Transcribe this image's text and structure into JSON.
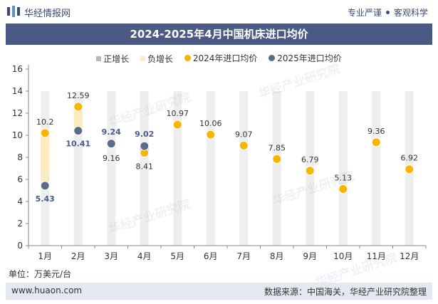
{
  "header": {
    "brand": "华经情报网",
    "slogan_left": "专业严谨",
    "slogan_right": "客观科学"
  },
  "chart_data": {
    "type": "line",
    "title": "2024-2025年4月中国机床进口均价",
    "unit": "单位：万美元/台",
    "categories": [
      "1月",
      "2月",
      "3月",
      "4月",
      "5月",
      "6月",
      "7月",
      "8月",
      "9月",
      "10月",
      "11月",
      "12月"
    ],
    "ylim": [
      0,
      16
    ],
    "yticks": [
      0,
      2,
      4,
      6,
      8,
      10,
      12,
      14,
      16
    ],
    "legend": [
      "正增长",
      "负增长",
      "2024年进口均价",
      "2025年进口均价"
    ],
    "legend_position": "top",
    "series": [
      {
        "name": "2024年进口均价",
        "color": "#f7b500",
        "values": [
          10.2,
          12.59,
          9.16,
          8.41,
          10.97,
          10.06,
          9.07,
          7.85,
          6.79,
          5.13,
          9.36,
          6.92
        ]
      },
      {
        "name": "2025年进口均价",
        "color": "#5b6b8c",
        "values": [
          5.43,
          10.41,
          9.24,
          9.02,
          null,
          null,
          null,
          null,
          null,
          null,
          null,
          null
        ]
      }
    ],
    "colors": {
      "positive": "#b8b8b8",
      "negative": "#fbecc0",
      "track": "#eeeeee"
    }
  },
  "footer": {
    "site": "www.huaon.com",
    "source": "数据来源：中国海关，华经产业研究院整理"
  },
  "watermarks": [
    "华经产业研究院",
    "www.huaon.com"
  ]
}
